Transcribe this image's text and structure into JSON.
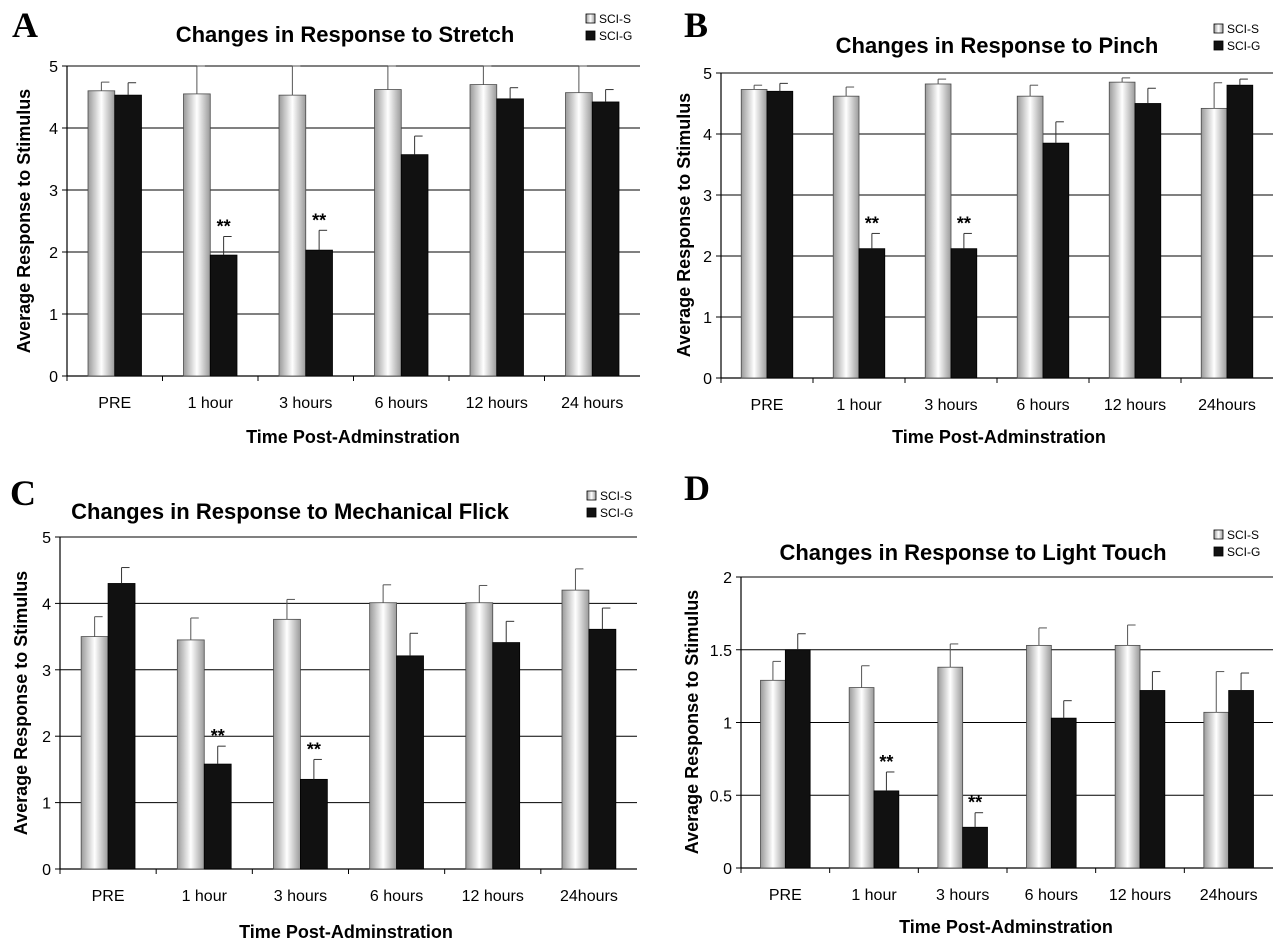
{
  "colors": {
    "scis_edge": "#4a4a4a",
    "scig_fill": "#111111",
    "grid": "#000000"
  },
  "chart_data": [
    {
      "type": "bar",
      "panel_label": "A",
      "title": "Changes in Response to Stretch",
      "xlabel": "Time Post-Adminstration",
      "ylabel": "Average Response to Stimulus",
      "ylim": [
        0,
        5
      ],
      "yticks": [
        "0",
        "1",
        "2",
        "3",
        "4",
        "5"
      ],
      "categories": [
        "PRE",
        "1 hour",
        "3 hours",
        "6 hours",
        "12 hours",
        "24 hours"
      ],
      "series": [
        {
          "name": "SCI-S",
          "values": [
            4.6,
            4.55,
            4.53,
            4.62,
            4.7,
            4.57
          ],
          "errors": [
            0.14,
            0.5,
            0.5,
            0.38,
            0.32,
            0.44
          ]
        },
        {
          "name": "SCI-G",
          "values": [
            4.53,
            1.95,
            2.03,
            3.57,
            4.47,
            4.42
          ],
          "errors": [
            0.2,
            0.3,
            0.32,
            0.3,
            0.18,
            0.2
          ]
        }
      ],
      "annotations": [
        {
          "category": "1 hour",
          "text": "**"
        },
        {
          "category": "3 hours",
          "text": "**"
        }
      ],
      "legend": "top-right",
      "grid": true
    },
    {
      "type": "bar",
      "panel_label": "B",
      "title": "Changes in Response to Pinch",
      "xlabel": "Time Post-Adminstration",
      "ylabel": "Average Response to Stimulus",
      "ylim": [
        0,
        5
      ],
      "yticks": [
        "0",
        "1",
        "2",
        "3",
        "4",
        "5"
      ],
      "categories": [
        "PRE",
        "1 hour",
        "3 hours",
        "6 hours",
        "12 hours",
        "24hours"
      ],
      "series": [
        {
          "name": "SCI-S",
          "values": [
            4.73,
            4.62,
            4.82,
            4.62,
            4.85,
            4.42
          ],
          "errors": [
            0.07,
            0.15,
            0.08,
            0.18,
            0.07,
            0.42
          ]
        },
        {
          "name": "SCI-G",
          "values": [
            4.7,
            2.12,
            2.12,
            3.85,
            4.5,
            4.8
          ],
          "errors": [
            0.13,
            0.25,
            0.25,
            0.35,
            0.25,
            0.1
          ]
        }
      ],
      "annotations": [
        {
          "category": "1 hour",
          "text": "**"
        },
        {
          "category": "3 hours",
          "text": "**"
        }
      ],
      "legend": "top-right",
      "grid": true
    },
    {
      "type": "bar",
      "panel_label": "C",
      "title": "Changes in Response to Mechanical Flick",
      "xlabel": "Time Post-Adminstration",
      "ylabel": "Average Response to Stimulus",
      "ylim": [
        0,
        5
      ],
      "yticks": [
        "0",
        "1",
        "2",
        "3",
        "4",
        "5"
      ],
      "categories": [
        "PRE",
        "1 hour",
        "3 hours",
        "6 hours",
        "12 hours",
        "24hours"
      ],
      "series": [
        {
          "name": "SCI-S",
          "values": [
            3.5,
            3.45,
            3.76,
            4.01,
            4.01,
            4.2
          ],
          "errors": [
            0.3,
            0.33,
            0.3,
            0.27,
            0.26,
            0.32
          ]
        },
        {
          "name": "SCI-G",
          "values": [
            4.3,
            1.58,
            1.35,
            3.21,
            3.41,
            3.61
          ],
          "errors": [
            0.24,
            0.27,
            0.3,
            0.34,
            0.32,
            0.32
          ]
        }
      ],
      "annotations": [
        {
          "category": "1 hour",
          "text": "**"
        },
        {
          "category": "3 hours",
          "text": "**"
        }
      ],
      "legend": "top-right",
      "grid": true
    },
    {
      "type": "bar",
      "panel_label": "D",
      "title": "Changes in Response to Light Touch",
      "xlabel": "Time Post-Adminstration",
      "ylabel": "Average Response to Stimulus",
      "ylim": [
        0,
        2
      ],
      "yticks": [
        "0",
        "0.5",
        "1",
        "1.5",
        "2"
      ],
      "categories": [
        "PRE",
        "1 hour",
        "3 hours",
        "6 hours",
        "12 hours",
        "24hours"
      ],
      "series": [
        {
          "name": "SCI-S",
          "values": [
            1.29,
            1.24,
            1.38,
            1.53,
            1.53,
            1.07
          ],
          "errors": [
            0.13,
            0.15,
            0.16,
            0.12,
            0.14,
            0.28
          ]
        },
        {
          "name": "SCI-G",
          "values": [
            1.5,
            0.53,
            0.28,
            1.03,
            1.22,
            1.22
          ],
          "errors": [
            0.11,
            0.13,
            0.1,
            0.12,
            0.13,
            0.12
          ]
        }
      ],
      "annotations": [
        {
          "category": "1 hour",
          "text": "**"
        },
        {
          "category": "3 hours",
          "text": "**"
        }
      ],
      "legend": "top-right",
      "grid": true
    }
  ]
}
